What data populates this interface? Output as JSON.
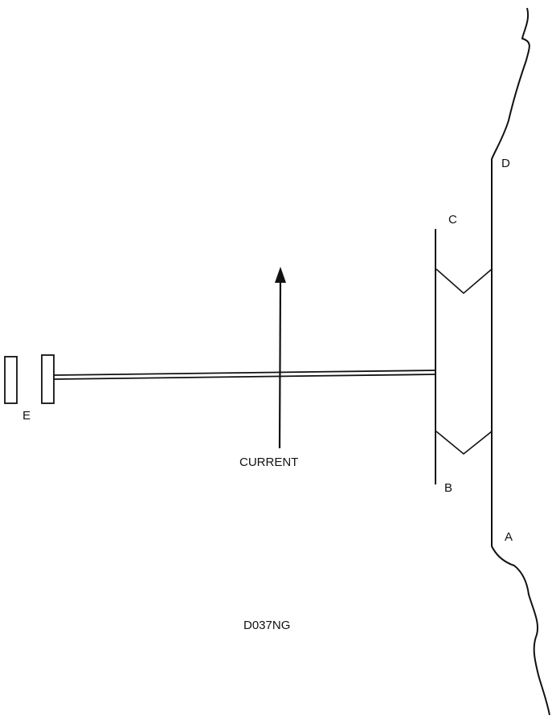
{
  "labels": {
    "a": "A",
    "b": "B",
    "c": "C",
    "d": "D",
    "e": "E",
    "current": "CURRENT",
    "figure_code": "D037NG"
  },
  "colors": {
    "line": "#111111",
    "background": "#ffffff"
  }
}
